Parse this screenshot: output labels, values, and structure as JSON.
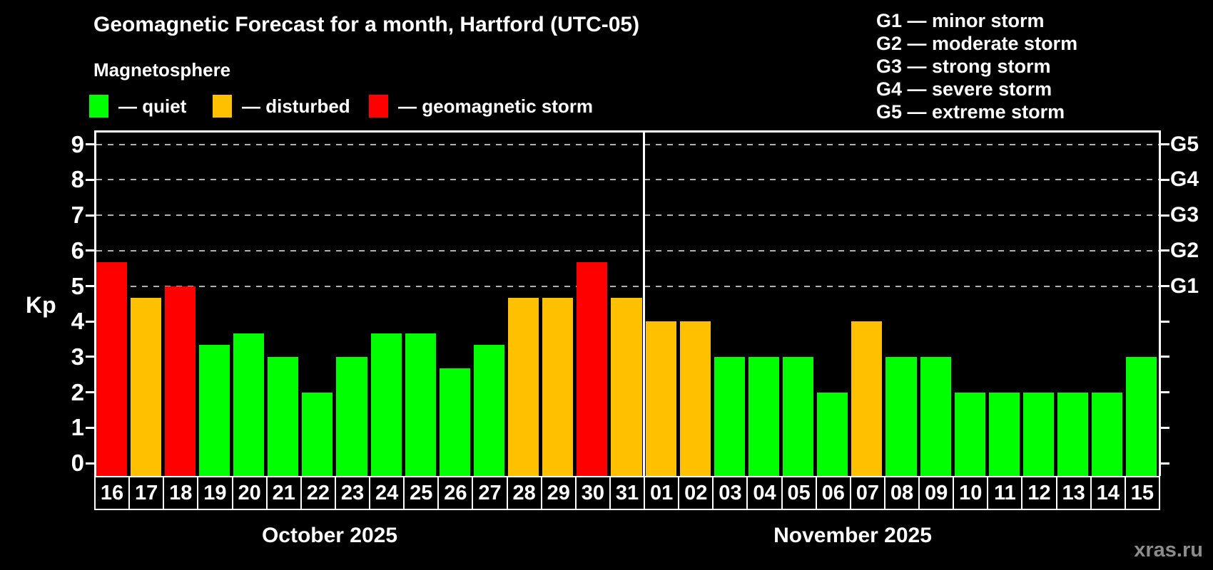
{
  "title": "Geomagnetic Forecast for a month, Hartford (UTC-05)",
  "subtitle": "Magnetosphere",
  "legend": {
    "items": [
      {
        "key": "quiet",
        "label": "— quiet"
      },
      {
        "key": "disturbed",
        "label": "— disturbed"
      },
      {
        "key": "storm",
        "label": "— geomagnetic storm"
      }
    ]
  },
  "storm_scale_legend": [
    "G1 — minor storm",
    "G2 — moderate storm",
    "G3 — strong storm",
    "G4 — severe storm",
    "G5 — extreme storm"
  ],
  "colors": {
    "quiet": "#00ff00",
    "disturbed": "#ffc000",
    "storm": "#ff0000",
    "grid": "#b0b0b0",
    "axis": "#ffffff",
    "background": "#000000",
    "watermark": "#8c8c8c"
  },
  "axis": {
    "kp_label": "Kp",
    "kp_ticks": [
      0,
      1,
      2,
      3,
      4,
      5,
      6,
      7,
      8,
      9
    ],
    "g_levels": [
      {
        "kp": 5,
        "label": "G1"
      },
      {
        "kp": 6,
        "label": "G2"
      },
      {
        "kp": 7,
        "label": "G3"
      },
      {
        "kp": 8,
        "label": "G4"
      },
      {
        "kp": 9,
        "label": "G5"
      }
    ]
  },
  "watermark": "xras.ru",
  "chart_data": {
    "type": "bar",
    "title": "Geomagnetic Forecast for a month, Hartford (UTC-05)",
    "ylabel": "Kp",
    "ylim": [
      0,
      9
    ],
    "grid": "dashed horizontal at Kp 5-9 (G1-G5)",
    "months": [
      {
        "label": "October 2025",
        "num_days": 16
      },
      {
        "label": "November 2025",
        "num_days": 15
      }
    ],
    "days": [
      {
        "day": "16",
        "kp": 5.67,
        "state": "storm"
      },
      {
        "day": "17",
        "kp": 4.67,
        "state": "disturbed"
      },
      {
        "day": "18",
        "kp": 5.0,
        "state": "storm"
      },
      {
        "day": "19",
        "kp": 3.33,
        "state": "quiet"
      },
      {
        "day": "20",
        "kp": 3.67,
        "state": "quiet"
      },
      {
        "day": "21",
        "kp": 3.0,
        "state": "quiet"
      },
      {
        "day": "22",
        "kp": 2.0,
        "state": "quiet"
      },
      {
        "day": "23",
        "kp": 3.0,
        "state": "quiet"
      },
      {
        "day": "24",
        "kp": 3.67,
        "state": "quiet"
      },
      {
        "day": "25",
        "kp": 3.67,
        "state": "quiet"
      },
      {
        "day": "26",
        "kp": 2.67,
        "state": "quiet"
      },
      {
        "day": "27",
        "kp": 3.33,
        "state": "quiet"
      },
      {
        "day": "28",
        "kp": 4.67,
        "state": "disturbed"
      },
      {
        "day": "29",
        "kp": 4.67,
        "state": "disturbed"
      },
      {
        "day": "30",
        "kp": 5.67,
        "state": "storm"
      },
      {
        "day": "31",
        "kp": 4.67,
        "state": "disturbed"
      },
      {
        "day": "01",
        "kp": 4.0,
        "state": "disturbed"
      },
      {
        "day": "02",
        "kp": 4.0,
        "state": "disturbed"
      },
      {
        "day": "03",
        "kp": 3.0,
        "state": "quiet"
      },
      {
        "day": "04",
        "kp": 3.0,
        "state": "quiet"
      },
      {
        "day": "05",
        "kp": 3.0,
        "state": "quiet"
      },
      {
        "day": "06",
        "kp": 2.0,
        "state": "quiet"
      },
      {
        "day": "07",
        "kp": 4.0,
        "state": "disturbed"
      },
      {
        "day": "08",
        "kp": 3.0,
        "state": "quiet"
      },
      {
        "day": "09",
        "kp": 3.0,
        "state": "quiet"
      },
      {
        "day": "10",
        "kp": 2.0,
        "state": "quiet"
      },
      {
        "day": "11",
        "kp": 2.0,
        "state": "quiet"
      },
      {
        "day": "12",
        "kp": 2.0,
        "state": "quiet"
      },
      {
        "day": "13",
        "kp": 2.0,
        "state": "quiet"
      },
      {
        "day": "14",
        "kp": 2.0,
        "state": "quiet"
      },
      {
        "day": "15",
        "kp": 3.0,
        "state": "quiet"
      }
    ]
  }
}
